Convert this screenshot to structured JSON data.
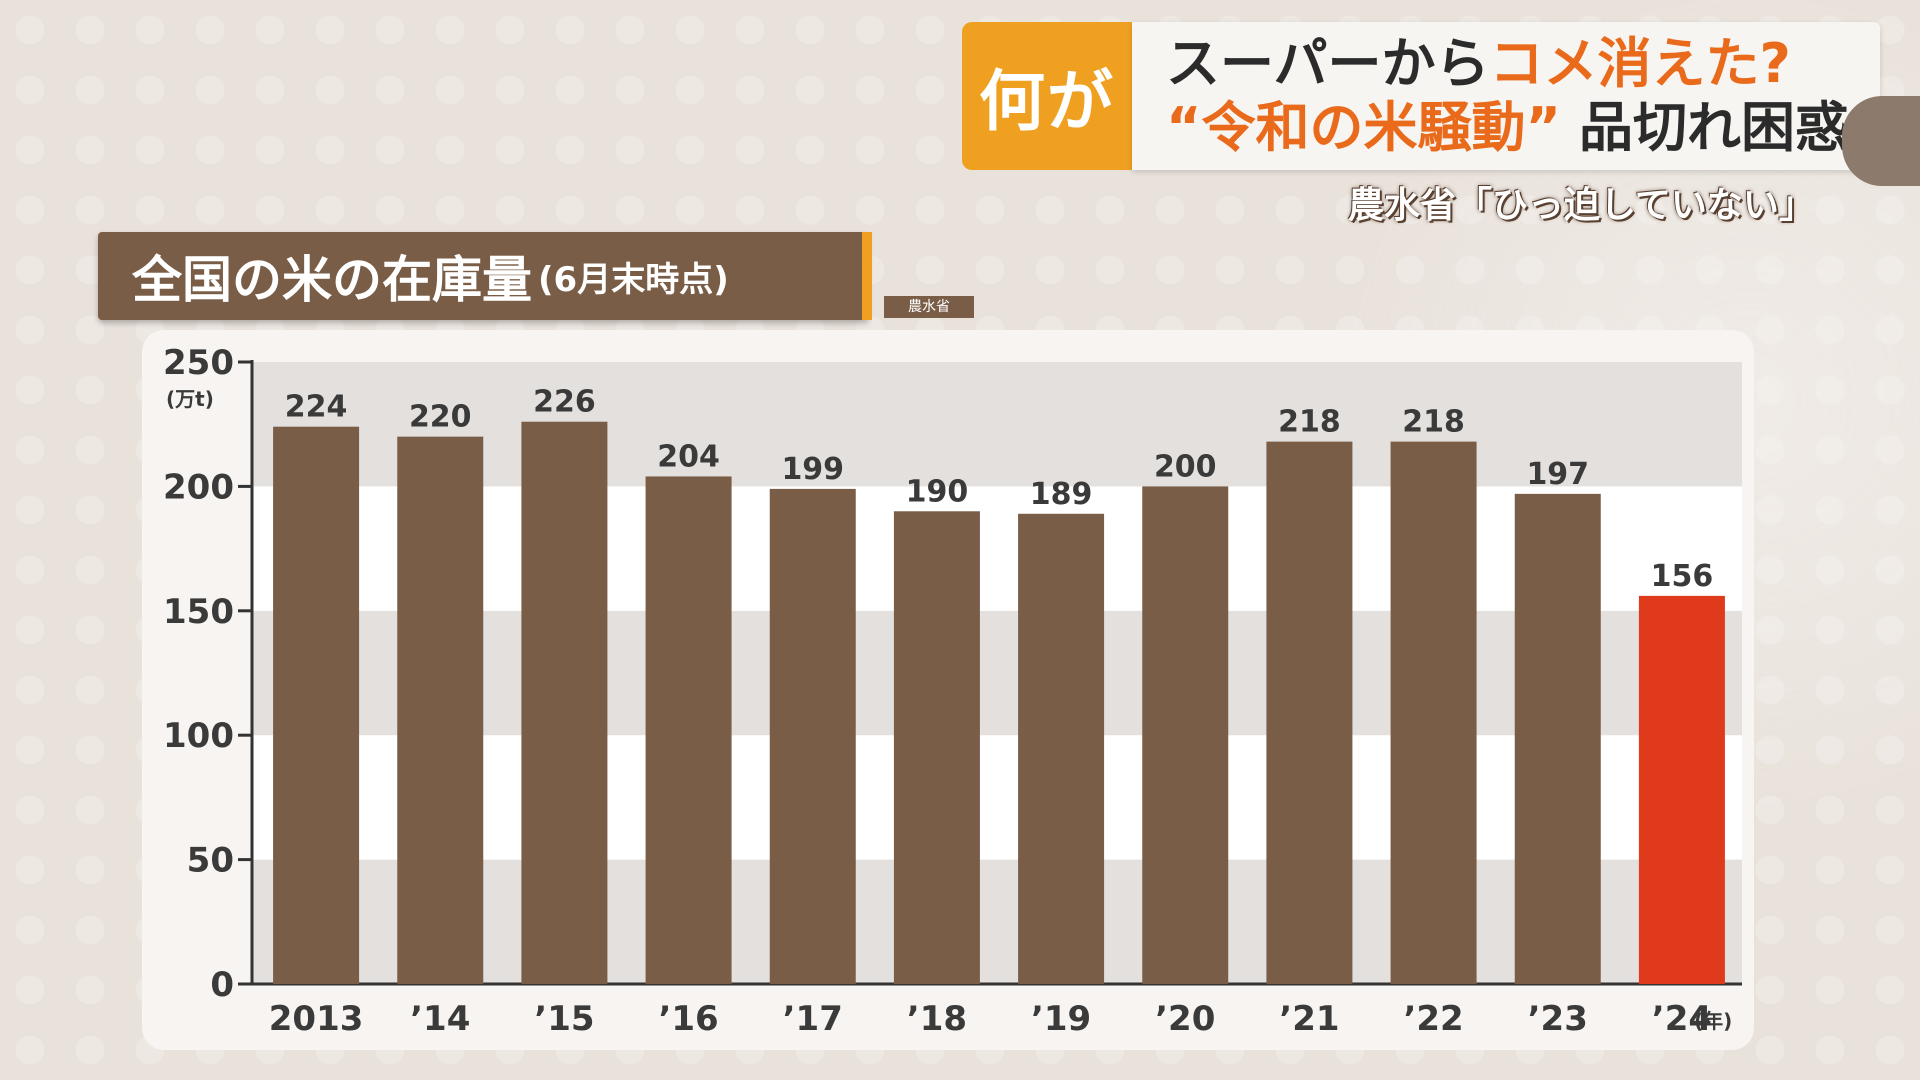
{
  "headline": {
    "tag": "何が",
    "line1_prefix": "スーパーから",
    "line1_accent": "コメ消えた?",
    "line2_accent": "“令和の米騒動”",
    "line2_suffix": "品切れ困惑",
    "subline": "農水省「ひっ迫していない」"
  },
  "chart_data": {
    "type": "bar",
    "title": "全国の米の在庫量",
    "subtitle": "(6月末時点)",
    "source": "農水省",
    "ylabel": "(万t)",
    "xlabel": "(年)",
    "categories": [
      "2013",
      "’14",
      "’15",
      "’16",
      "’17",
      "’18",
      "’19",
      "’20",
      "’21",
      "’22",
      "’23",
      "’24"
    ],
    "values": [
      224,
      220,
      226,
      204,
      199,
      190,
      189,
      200,
      218,
      218,
      197,
      156
    ],
    "yticks": [
      0,
      50,
      100,
      150,
      200,
      250
    ],
    "ylim": [
      0,
      250
    ],
    "colors": {
      "bar": "#7a5d47",
      "highlight": "#e03a1c",
      "highlight_label": "#e03a1c"
    },
    "highlight_index": 11
  }
}
